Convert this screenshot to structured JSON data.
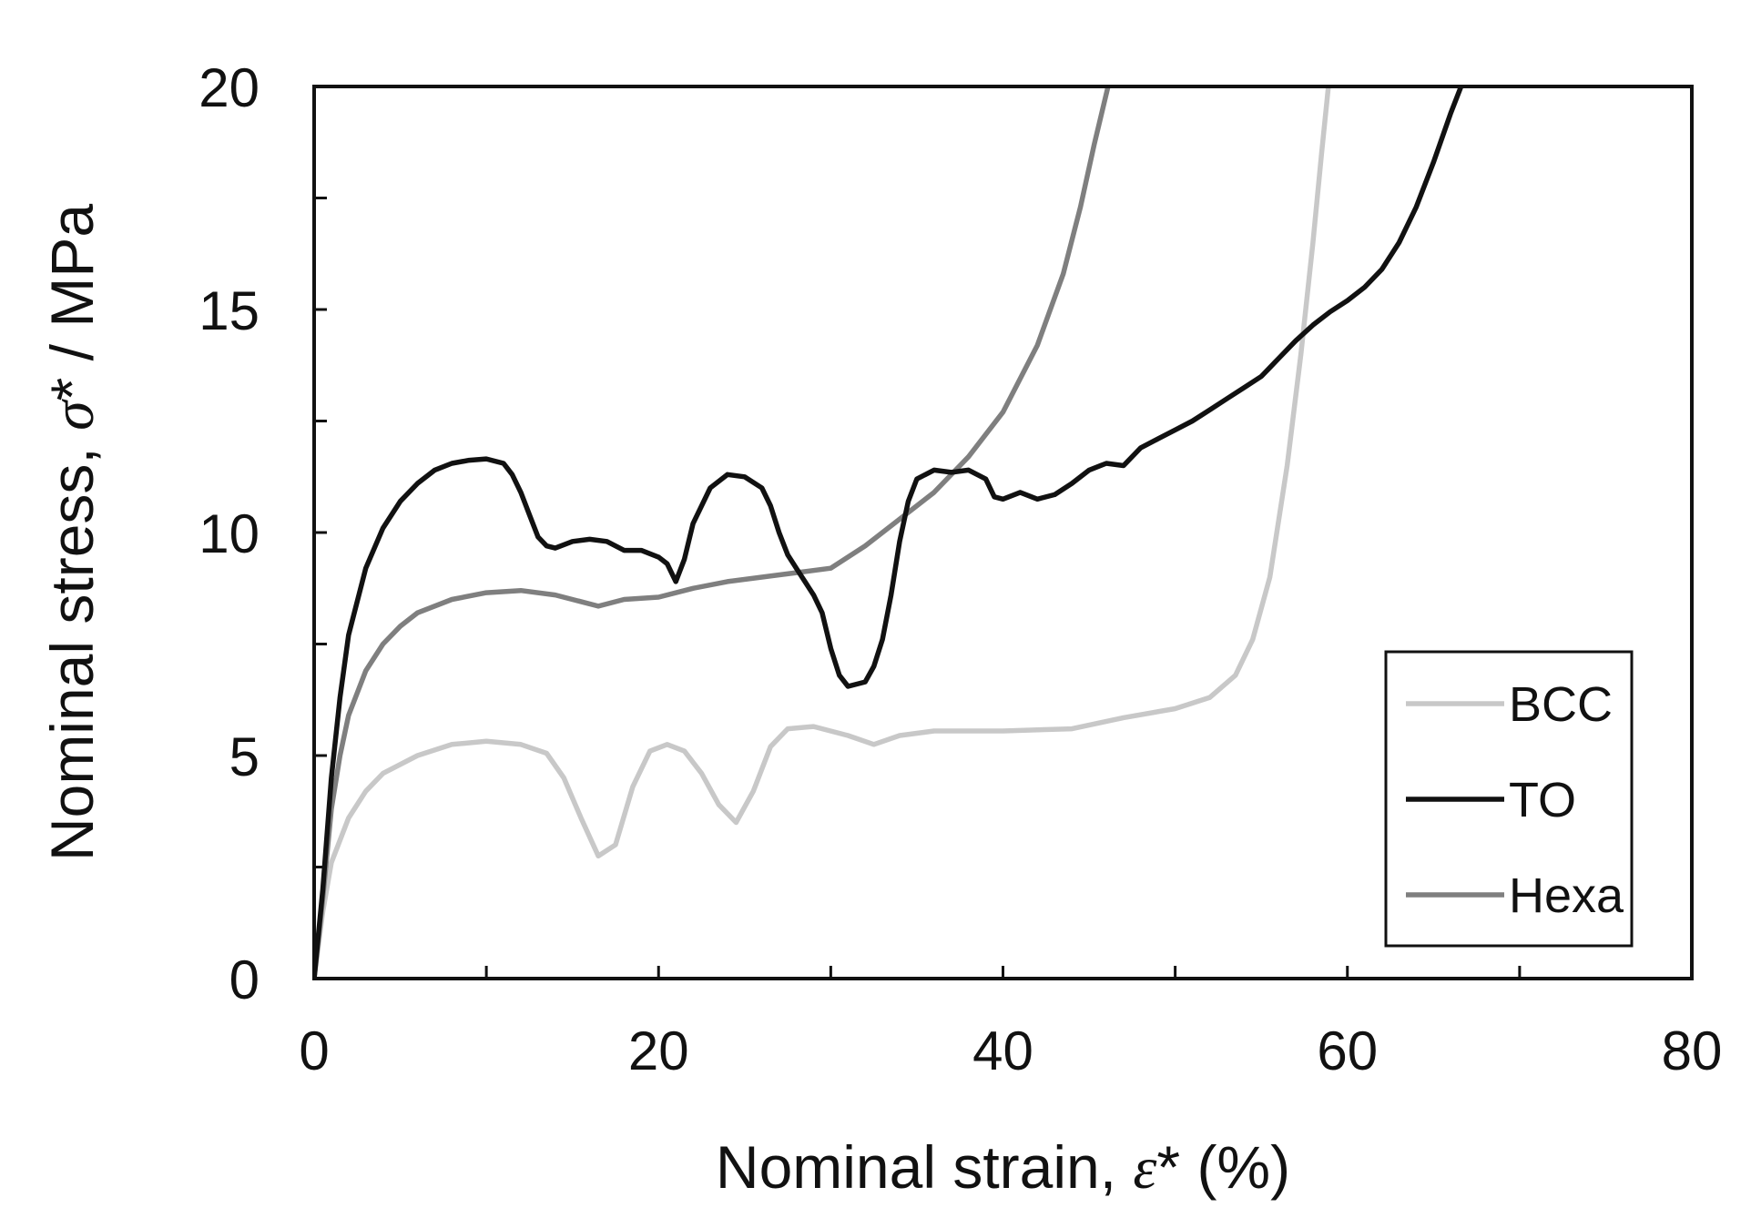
{
  "chart_data": {
    "type": "line",
    "xlabel": {
      "text": "Nominal strain, ",
      "symbol": "ε",
      "suffix": "* (%)"
    },
    "ylabel": {
      "text": "Nominal stress, ",
      "symbol": "σ",
      "suffix": "* / MPa"
    },
    "xlim": [
      0,
      80
    ],
    "ylim": [
      0,
      20
    ],
    "x_ticks": [
      "0",
      "20",
      "40",
      "60",
      "80"
    ],
    "y_ticks": [
      "0",
      "5",
      "10",
      "15",
      "20"
    ],
    "x_minor_step": 10,
    "y_minor_step": 2.5,
    "grid": false,
    "legend_position": "bottom-right",
    "series": [
      {
        "name": "BCC",
        "color": "#c8c8c8",
        "points": [
          [
            0,
            0
          ],
          [
            0.5,
            1.5
          ],
          [
            1,
            2.6
          ],
          [
            2,
            3.6
          ],
          [
            3,
            4.2
          ],
          [
            4,
            4.6
          ],
          [
            6,
            5.0
          ],
          [
            8,
            5.25
          ],
          [
            10,
            5.32
          ],
          [
            12,
            5.25
          ],
          [
            13.5,
            5.05
          ],
          [
            14.5,
            4.5
          ],
          [
            15.5,
            3.6
          ],
          [
            16.5,
            2.75
          ],
          [
            17.5,
            3.0
          ],
          [
            18.5,
            4.3
          ],
          [
            19.5,
            5.1
          ],
          [
            20.5,
            5.25
          ],
          [
            21.5,
            5.1
          ],
          [
            22.5,
            4.6
          ],
          [
            23.5,
            3.9
          ],
          [
            24.5,
            3.5
          ],
          [
            25.5,
            4.2
          ],
          [
            26.5,
            5.2
          ],
          [
            27.5,
            5.6
          ],
          [
            29,
            5.65
          ],
          [
            31,
            5.45
          ],
          [
            32.5,
            5.25
          ],
          [
            34,
            5.45
          ],
          [
            36,
            5.55
          ],
          [
            40,
            5.55
          ],
          [
            44,
            5.6
          ],
          [
            47,
            5.85
          ],
          [
            50,
            6.05
          ],
          [
            52,
            6.3
          ],
          [
            53.5,
            6.8
          ],
          [
            54.5,
            7.6
          ],
          [
            55.5,
            9.0
          ],
          [
            56.5,
            11.5
          ],
          [
            57.3,
            14.0
          ],
          [
            58,
            16.5
          ],
          [
            58.5,
            18.5
          ],
          [
            58.9,
            20
          ]
        ]
      },
      {
        "name": "TO",
        "color": "#111111",
        "points": [
          [
            0,
            0
          ],
          [
            0.5,
            2.0
          ],
          [
            1,
            4.5
          ],
          [
            1.5,
            6.3
          ],
          [
            2,
            7.7
          ],
          [
            3,
            9.2
          ],
          [
            4,
            10.1
          ],
          [
            5,
            10.7
          ],
          [
            6,
            11.1
          ],
          [
            7,
            11.4
          ],
          [
            8,
            11.55
          ],
          [
            9,
            11.62
          ],
          [
            10,
            11.65
          ],
          [
            11,
            11.55
          ],
          [
            11.5,
            11.3
          ],
          [
            12,
            10.9
          ],
          [
            12.5,
            10.4
          ],
          [
            13,
            9.9
          ],
          [
            13.5,
            9.7
          ],
          [
            14,
            9.65
          ],
          [
            15,
            9.8
          ],
          [
            16,
            9.85
          ],
          [
            17,
            9.8
          ],
          [
            18,
            9.6
          ],
          [
            19,
            9.6
          ],
          [
            20,
            9.45
          ],
          [
            20.5,
            9.3
          ],
          [
            21,
            8.9
          ],
          [
            21.5,
            9.4
          ],
          [
            22,
            10.2
          ],
          [
            23,
            11.0
          ],
          [
            24,
            11.3
          ],
          [
            25,
            11.25
          ],
          [
            26,
            11.0
          ],
          [
            26.5,
            10.6
          ],
          [
            27,
            10.0
          ],
          [
            27.5,
            9.5
          ],
          [
            28,
            9.2
          ],
          [
            28.5,
            8.9
          ],
          [
            29,
            8.6
          ],
          [
            29.5,
            8.2
          ],
          [
            30,
            7.4
          ],
          [
            30.5,
            6.8
          ],
          [
            31,
            6.55
          ],
          [
            32,
            6.65
          ],
          [
            32.5,
            7.0
          ],
          [
            33,
            7.6
          ],
          [
            33.5,
            8.6
          ],
          [
            34,
            9.8
          ],
          [
            34.5,
            10.7
          ],
          [
            35,
            11.2
          ],
          [
            36,
            11.4
          ],
          [
            37,
            11.35
          ],
          [
            38,
            11.4
          ],
          [
            39,
            11.2
          ],
          [
            39.5,
            10.8
          ],
          [
            40,
            10.75
          ],
          [
            41,
            10.9
          ],
          [
            42,
            10.75
          ],
          [
            43,
            10.85
          ],
          [
            44,
            11.1
          ],
          [
            45,
            11.4
          ],
          [
            46,
            11.55
          ],
          [
            47,
            11.5
          ],
          [
            48,
            11.9
          ],
          [
            49,
            12.1
          ],
          [
            50,
            12.3
          ],
          [
            51,
            12.5
          ],
          [
            52,
            12.75
          ],
          [
            53,
            13.0
          ],
          [
            54,
            13.25
          ],
          [
            55,
            13.5
          ],
          [
            56,
            13.9
          ],
          [
            57,
            14.3
          ],
          [
            58,
            14.65
          ],
          [
            59,
            14.95
          ],
          [
            60,
            15.2
          ],
          [
            61,
            15.5
          ],
          [
            62,
            15.9
          ],
          [
            63,
            16.5
          ],
          [
            64,
            17.3
          ],
          [
            65,
            18.3
          ],
          [
            66,
            19.4
          ],
          [
            66.6,
            20
          ]
        ]
      },
      {
        "name": "Hexa",
        "color": "#7f7f7f",
        "points": [
          [
            0,
            0
          ],
          [
            0.5,
            1.8
          ],
          [
            1,
            3.8
          ],
          [
            1.5,
            5.0
          ],
          [
            2,
            5.9
          ],
          [
            3,
            6.9
          ],
          [
            4,
            7.5
          ],
          [
            5,
            7.9
          ],
          [
            6,
            8.2
          ],
          [
            8,
            8.5
          ],
          [
            10,
            8.65
          ],
          [
            12,
            8.7
          ],
          [
            14,
            8.6
          ],
          [
            16.5,
            8.35
          ],
          [
            18,
            8.5
          ],
          [
            20,
            8.55
          ],
          [
            22,
            8.75
          ],
          [
            24,
            8.9
          ],
          [
            26,
            9.0
          ],
          [
            28,
            9.1
          ],
          [
            30,
            9.2
          ],
          [
            32,
            9.7
          ],
          [
            34,
            10.3
          ],
          [
            36,
            10.9
          ],
          [
            38,
            11.7
          ],
          [
            40,
            12.7
          ],
          [
            42,
            14.2
          ],
          [
            43.5,
            15.8
          ],
          [
            44.5,
            17.3
          ],
          [
            45.3,
            18.7
          ],
          [
            46.1,
            20
          ]
        ]
      }
    ]
  }
}
